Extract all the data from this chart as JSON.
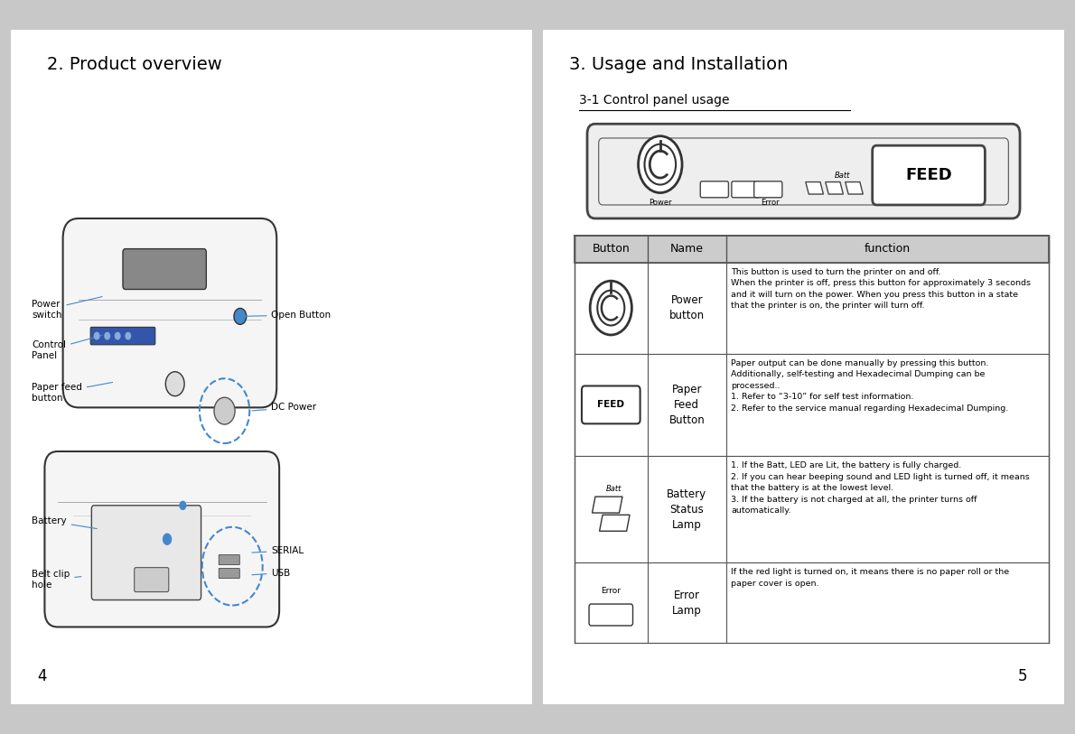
{
  "bg_color": "#c8c8c8",
  "title_left": "2. Product overview",
  "title_right": "3. Usage and Installation",
  "subtitle_right": "3-1 Control panel usage",
  "page_left": "4",
  "page_right": "5",
  "table_header": [
    "Button",
    "Name",
    "function"
  ],
  "table_header_bg": "#cccccc",
  "table_border": "#555555",
  "annotation_color": "#4488cc",
  "rows": [
    {
      "name": "Power\nbutton",
      "function": "This button is used to turn the printer on and off.\nWhen the printer is off, press this button for approximately 3 seconds\nand it will turn on the power. When you press this button in a state\nthat the printer is on, the printer will turn off."
    },
    {
      "name": "Paper\nFeed\nButton",
      "function": "Paper output can be done manually by pressing this button.\nAdditionally, self-testing and Hexadecimal Dumping can be\nprocessed..\n1. Refer to “3-10” for self test information.\n2. Refer to the service manual regarding Hexadecimal Dumping."
    },
    {
      "name": "Battery\nStatus\nLamp",
      "function": "1. If the Batt, LED are Lit, the battery is fully charged.\n2. If you can hear beeping sound and LED light is turned off, it means\nthat the battery is at the lowest level.\n3. If the battery is not charged at all, the printer turns off\nautomatically."
    },
    {
      "name": "Error\nLamp",
      "function": "If the red light is turned on, it means there is no paper roll or the\npaper cover is open."
    }
  ]
}
